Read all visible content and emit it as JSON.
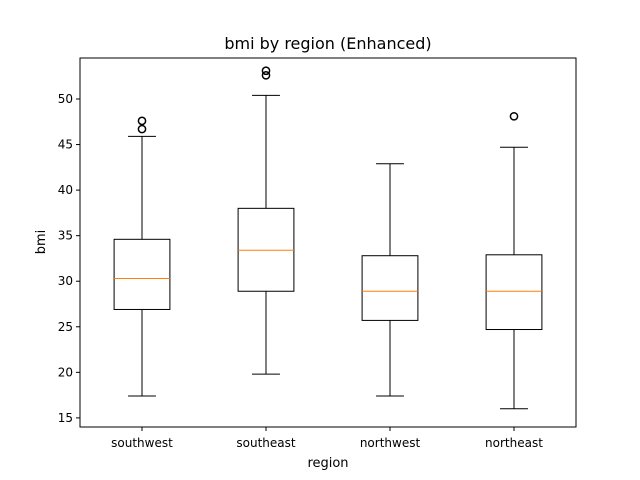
{
  "chart_data": {
    "type": "box",
    "title": "bmi by region (Enhanced)",
    "xlabel": "region",
    "ylabel": "bmi",
    "ylim": [
      14.0,
      54.5
    ],
    "yticks": [
      15,
      20,
      25,
      30,
      35,
      40,
      45,
      50
    ],
    "categories": [
      "southwest",
      "southeast",
      "northwest",
      "northeast"
    ],
    "boxes": [
      {
        "category": "southwest",
        "whisker_low": 17.4,
        "q1": 26.9,
        "median": 30.3,
        "q3": 34.6,
        "whisker_high": 45.9,
        "outliers": [
          46.7,
          47.6
        ]
      },
      {
        "category": "southeast",
        "whisker_low": 19.8,
        "q1": 28.9,
        "median": 33.4,
        "q3": 38.0,
        "whisker_high": 50.4,
        "outliers": [
          52.6,
          53.1
        ]
      },
      {
        "category": "northwest",
        "whisker_low": 17.4,
        "q1": 25.7,
        "median": 28.9,
        "q3": 32.8,
        "whisker_high": 42.9,
        "outliers": []
      },
      {
        "category": "northeast",
        "whisker_low": 16.0,
        "q1": 24.7,
        "median": 28.9,
        "q3": 32.9,
        "whisker_high": 44.7,
        "outliers": [
          48.1
        ]
      }
    ],
    "colors": {
      "box": "#000000",
      "median": "#ff7f0e",
      "background": "#ffffff"
    },
    "grid": false,
    "legend": "none"
  }
}
